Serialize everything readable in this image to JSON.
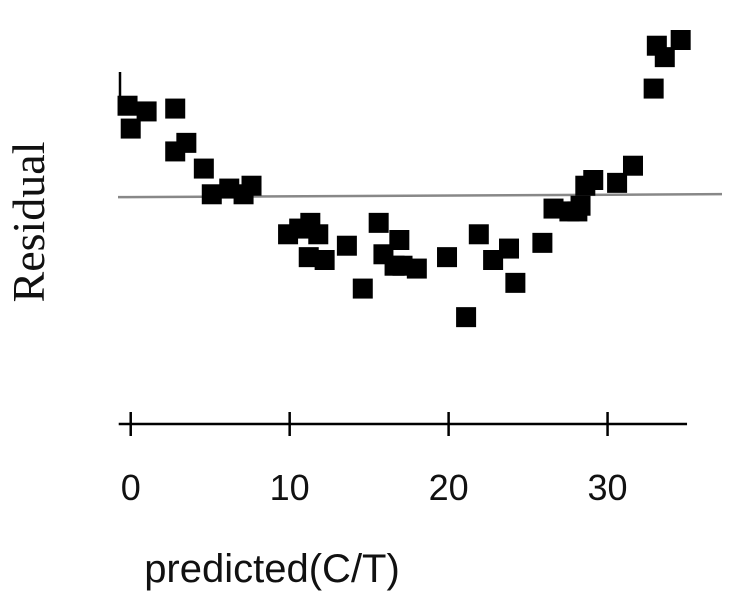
{
  "chart_data": {
    "type": "scatter",
    "title": "",
    "xlabel": "predicted(C/T)",
    "ylabel": "Residual",
    "xlim": [
      -0.8,
      37.2
    ],
    "ylim": [
      -6.4,
      6.2
    ],
    "x_ticks": [
      0,
      10,
      20,
      30
    ],
    "x_tick_labels": [
      "0",
      "10",
      "20",
      "30"
    ],
    "grid": false,
    "legend": "none",
    "reference_line": {
      "y": 0,
      "color": "#888888"
    },
    "marker_color": "#000000",
    "series": [
      {
        "x": [
          -0.2,
          1.0,
          2.8,
          0.0,
          3.5,
          2.8,
          4.6,
          5.1,
          6.2,
          7.1,
          7.6,
          9.9,
          10.6,
          11.3,
          11.8,
          11.2,
          12.2,
          13.6,
          14.6,
          15.6,
          15.9,
          16.6,
          16.9,
          17.1,
          18.0,
          19.9,
          21.1,
          21.9,
          22.8,
          23.8,
          24.2,
          25.9,
          26.6,
          27.6,
          28.1,
          28.3,
          28.6,
          29.1,
          30.6,
          31.6,
          32.9,
          33.1,
          33.6,
          34.6
        ],
        "y": [
          3.2,
          3.0,
          3.1,
          2.4,
          1.9,
          1.6,
          1.0,
          0.1,
          0.3,
          0.1,
          0.4,
          -1.3,
          -1.1,
          -0.9,
          -1.3,
          -2.1,
          -2.2,
          -1.7,
          -3.2,
          -0.9,
          -2.0,
          -2.4,
          -1.5,
          -2.4,
          -2.5,
          -2.1,
          -4.2,
          -1.3,
          -2.2,
          -1.8,
          -3.0,
          -1.6,
          -0.4,
          -0.5,
          -0.5,
          -0.3,
          0.4,
          0.6,
          0.5,
          1.1,
          3.8,
          5.3,
          4.9,
          5.5
        ]
      }
    ]
  }
}
